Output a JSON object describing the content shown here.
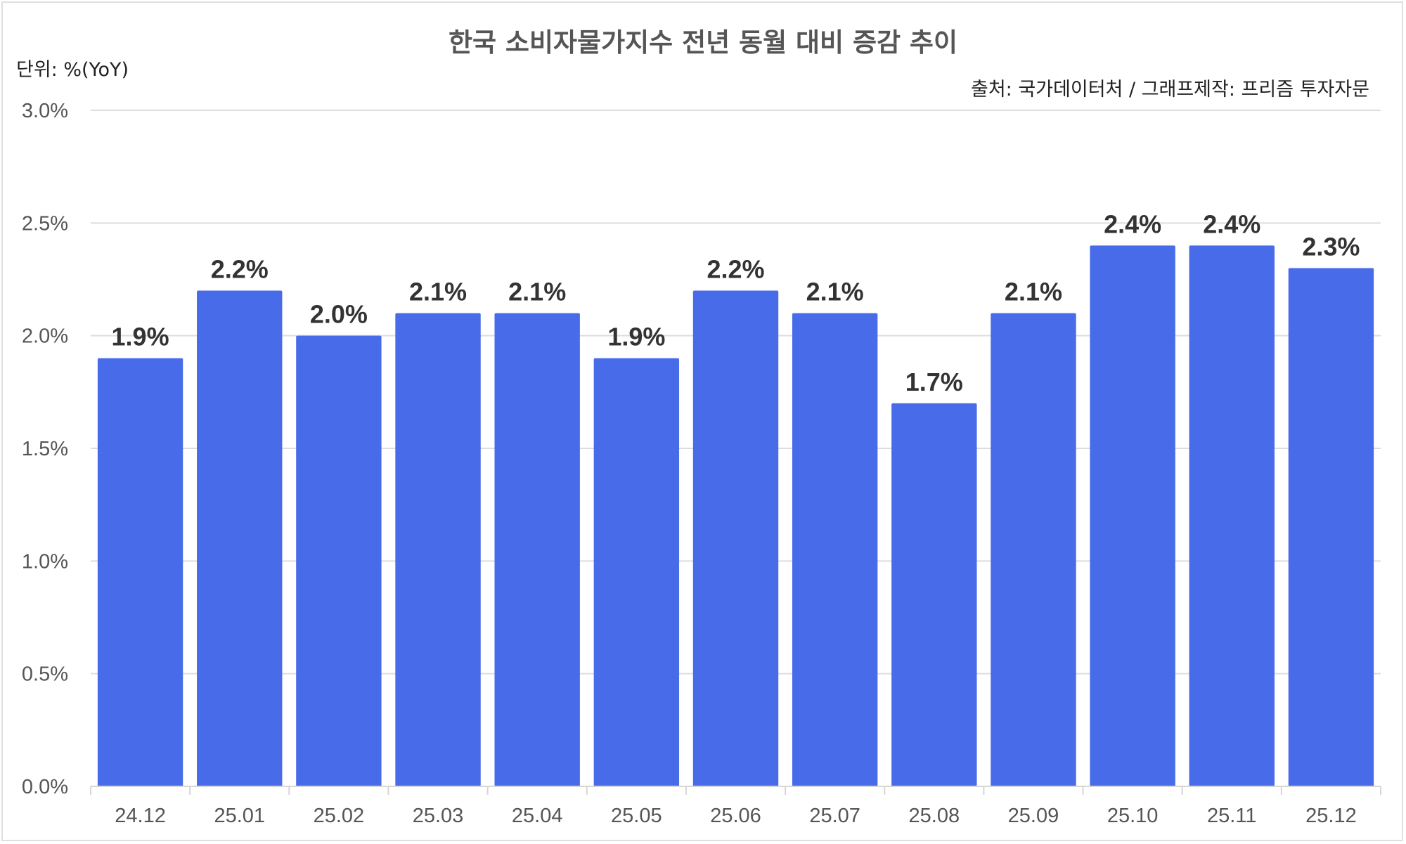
{
  "chart_data": {
    "type": "bar",
    "title": "한국 소비자물가지수 전년 동월 대비 증감 추이",
    "unit_label": "단위: %(YoY)",
    "source": "출처: 국가데이터처 / 그래프제작: 프리즘 투자자문",
    "categories": [
      "24.12",
      "25.01",
      "25.02",
      "25.03",
      "25.04",
      "25.05",
      "25.06",
      "25.07",
      "25.08",
      "25.09",
      "25.10",
      "25.11",
      "25.12"
    ],
    "values": [
      1.9,
      2.2,
      2.0,
      2.1,
      2.1,
      1.9,
      2.2,
      2.1,
      1.7,
      2.1,
      2.4,
      2.4,
      2.3
    ],
    "data_labels": [
      "1.9%",
      "2.2%",
      "2.0%",
      "2.1%",
      "2.1%",
      "1.9%",
      "2.2%",
      "2.1%",
      "1.7%",
      "2.1%",
      "2.4%",
      "2.4%",
      "2.3%"
    ],
    "yticks": [
      "0.0%",
      "0.5%",
      "1.0%",
      "1.5%",
      "2.0%",
      "2.5%",
      "3.0%"
    ],
    "ytick_values": [
      0,
      0.5,
      1.0,
      1.5,
      2.0,
      2.5,
      3.0
    ],
    "ylim": [
      0,
      3.0
    ],
    "xlabel": "",
    "ylabel": "",
    "grid": true,
    "bar_color": "#486BEA"
  }
}
